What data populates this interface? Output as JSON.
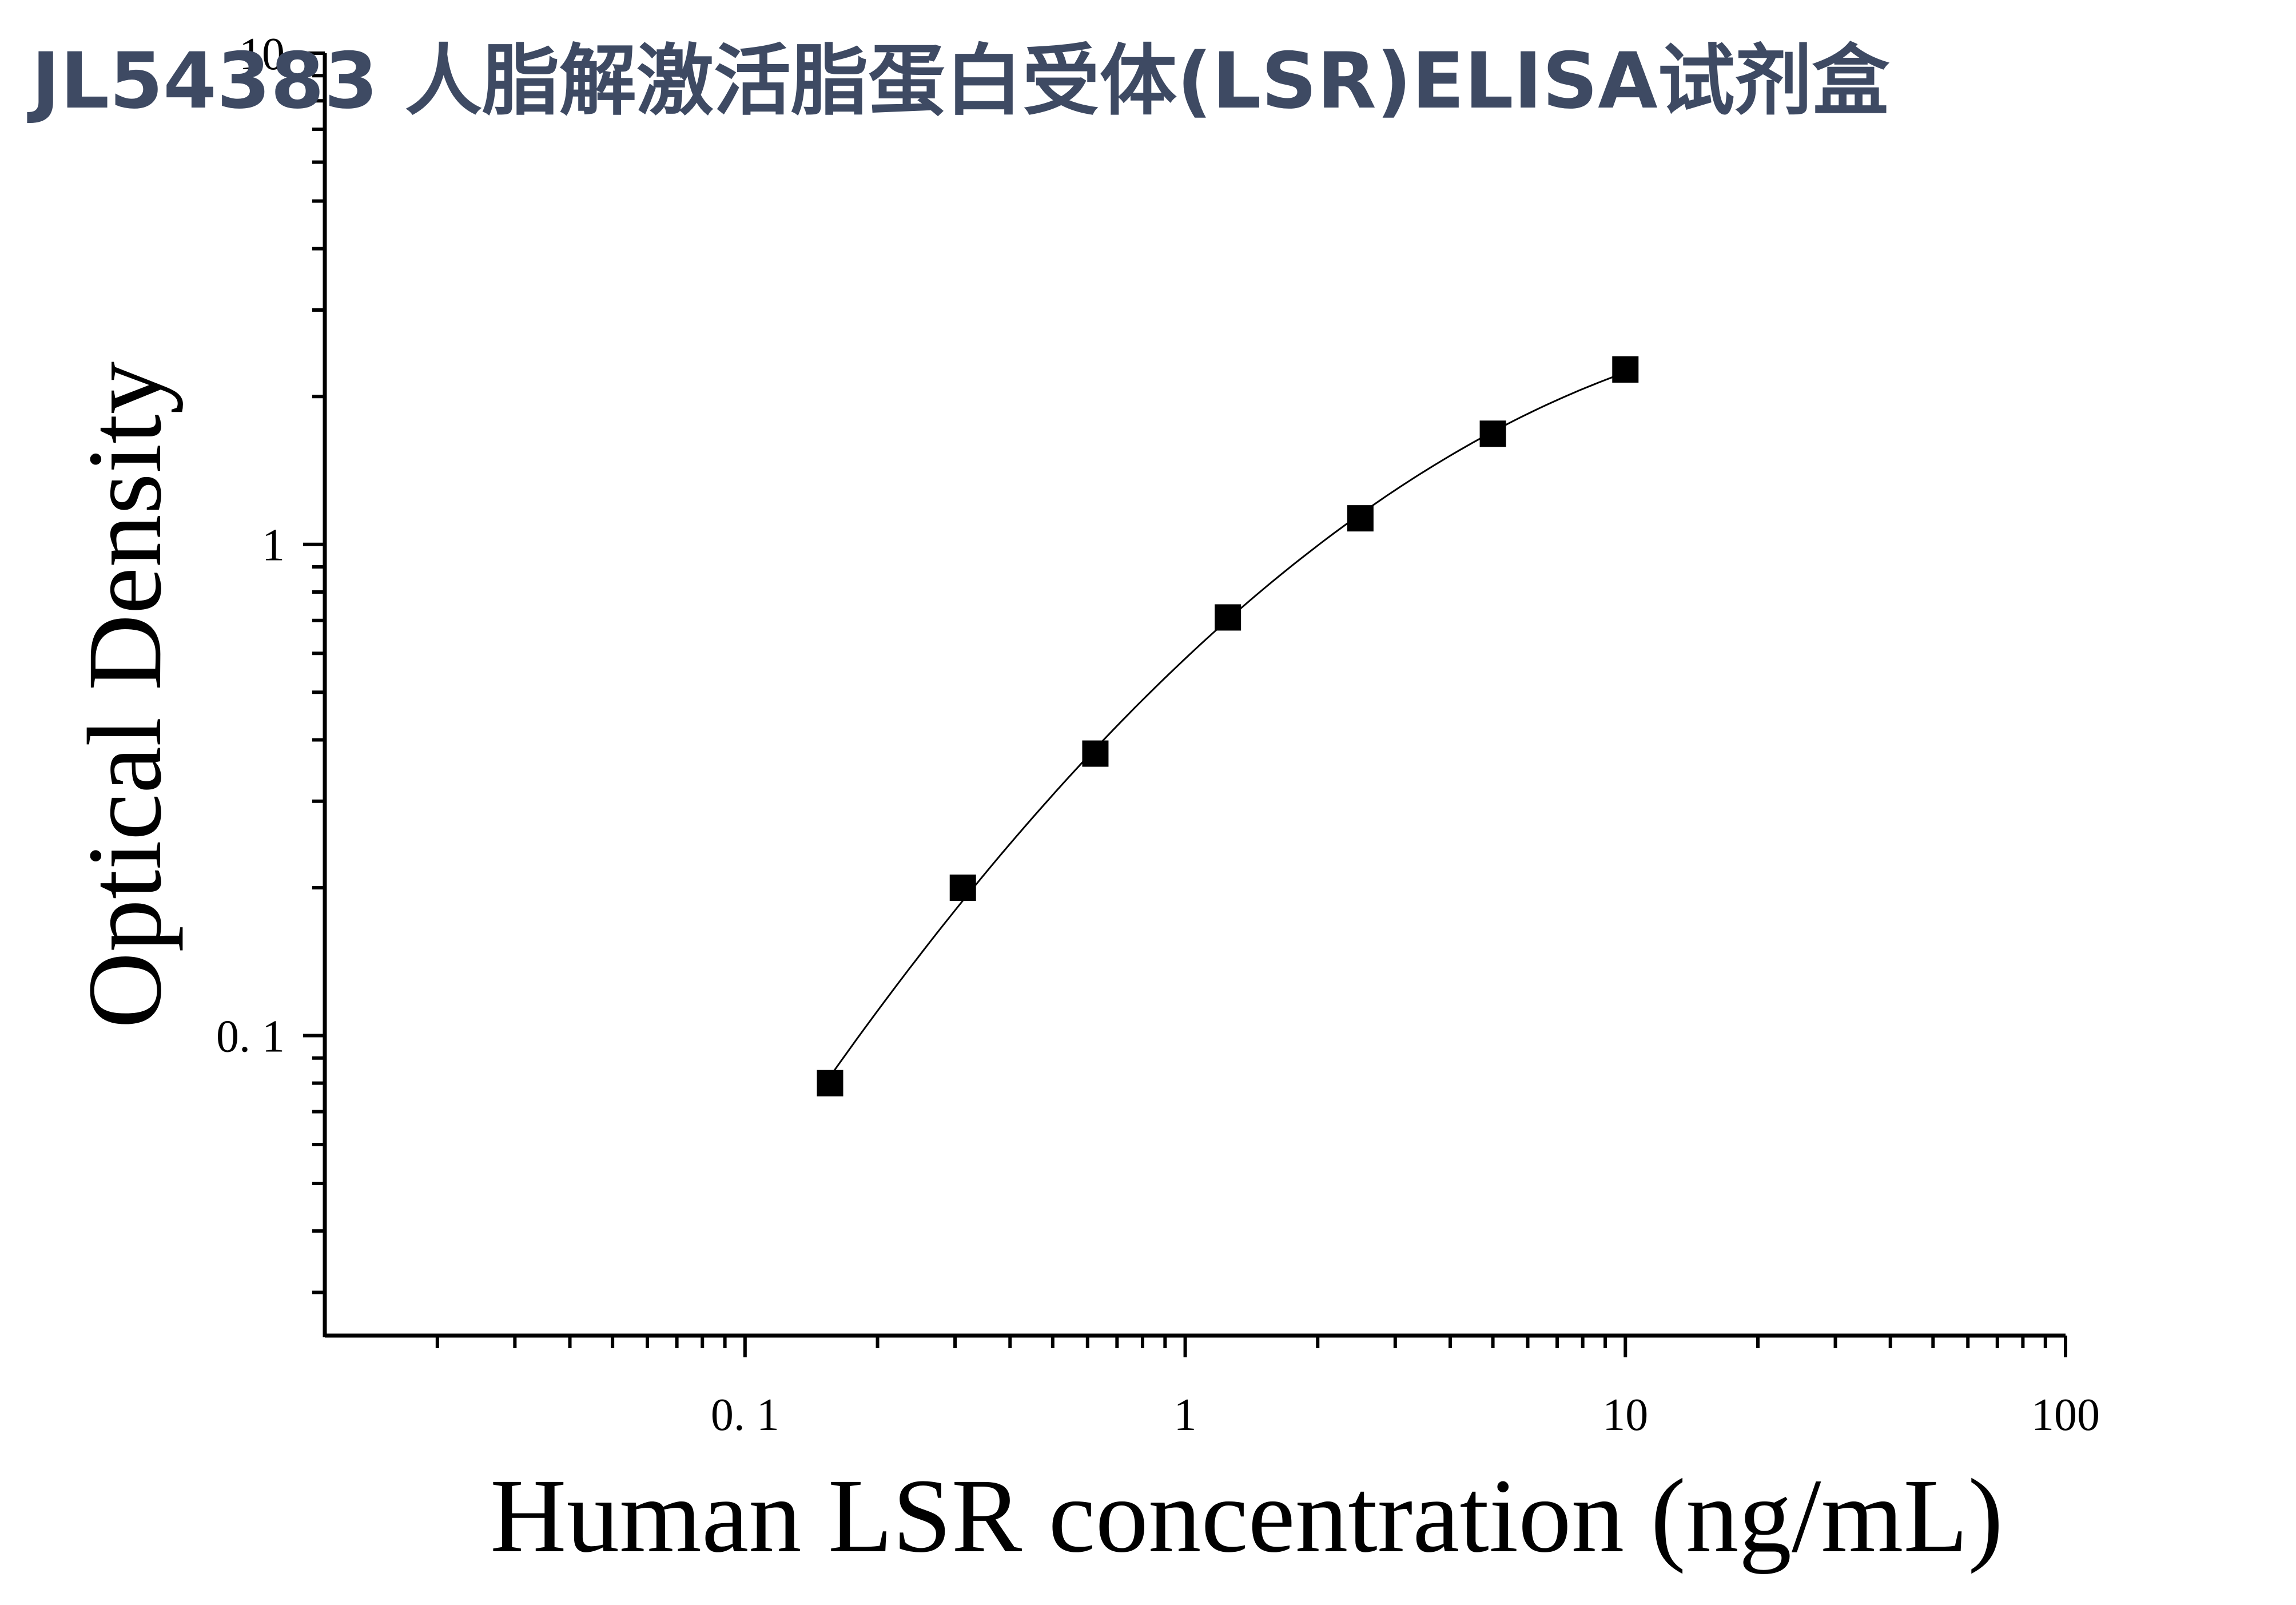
{
  "title": "JL54383 人脂解激活脂蛋白受体(LSR)ELISA试剂盒",
  "chart_data": {
    "type": "scatter",
    "title": "JL54383 人脂解激活脂蛋白受体(LSR)ELISA试剂盒",
    "xlabel": "Human LSR concentration (ng/mL)",
    "ylabel": "Optical Density",
    "x_scale": "log",
    "y_scale": "log",
    "xlim": [
      0.0111,
      100
    ],
    "ylim": [
      0.0245,
      10
    ],
    "x_ticks": [
      {
        "value": 0.1,
        "label": "0. 1"
      },
      {
        "value": 1,
        "label": "1"
      },
      {
        "value": 10,
        "label": "10"
      },
      {
        "value": 100,
        "label": "100"
      }
    ],
    "y_ticks": [
      {
        "value": 0.1,
        "label": "0. 1"
      },
      {
        "value": 1,
        "label": "1"
      },
      {
        "value": 10,
        "label": "10"
      }
    ],
    "series": [
      {
        "x": [
          0.156,
          0.3125,
          0.625,
          1.25,
          2.5,
          5,
          10
        ],
        "y": [
          0.08,
          0.2,
          0.375,
          0.71,
          1.13,
          1.68,
          2.27
        ],
        "marker": "square",
        "color": "#000000"
      }
    ],
    "fit_curve": true,
    "grid": false,
    "legend": false
  },
  "colors": {
    "title": "#3e4a63",
    "ink": "#000000",
    "background": "#ffffff"
  }
}
